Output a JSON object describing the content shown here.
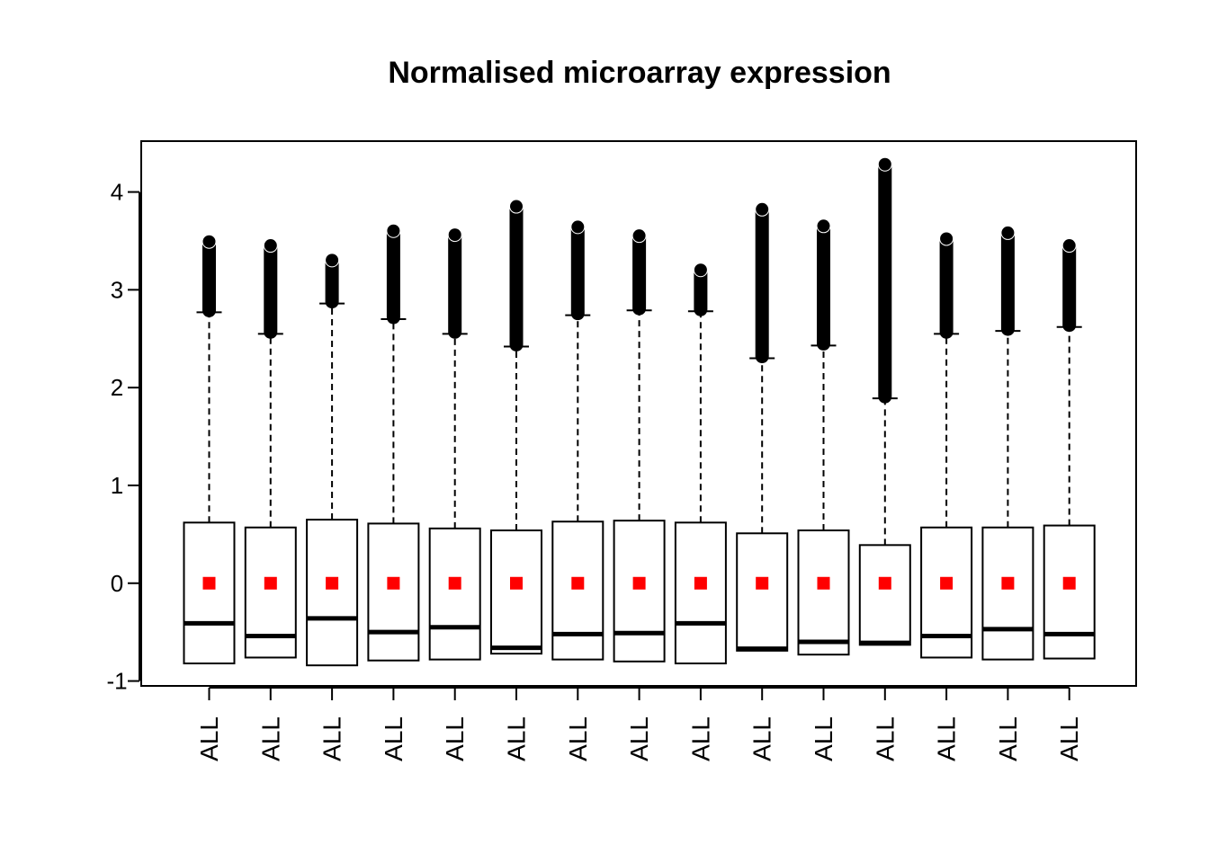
{
  "chart_data": {
    "type": "boxplot",
    "title": "Normalised microarray expression",
    "xlabel": "",
    "ylabel": "",
    "ylim": [
      -1.05,
      4.52
    ],
    "yticks": [
      -1,
      0,
      1,
      2,
      3,
      4
    ],
    "categories": [
      "ALL",
      "ALL",
      "ALL",
      "ALL",
      "ALL",
      "ALL",
      "ALL",
      "ALL",
      "ALL",
      "ALL",
      "ALL",
      "ALL",
      "ALL",
      "ALL",
      "ALL"
    ],
    "boxes": [
      {
        "min": -0.82,
        "q1": -0.82,
        "median": -0.41,
        "q3": 0.62,
        "whisker_high": 2.77,
        "outlier_max": 3.53
      },
      {
        "min": -0.76,
        "q1": -0.76,
        "median": -0.54,
        "q3": 0.57,
        "whisker_high": 2.55,
        "outlier_max": 3.49
      },
      {
        "min": -0.84,
        "q1": -0.84,
        "median": -0.36,
        "q3": 0.65,
        "whisker_high": 2.86,
        "outlier_max": 3.34
      },
      {
        "min": -0.79,
        "q1": -0.79,
        "median": -0.5,
        "q3": 0.61,
        "whisker_high": 2.7,
        "outlier_max": 3.64
      },
      {
        "min": -0.78,
        "q1": -0.78,
        "median": -0.45,
        "q3": 0.56,
        "whisker_high": 2.55,
        "outlier_max": 3.6
      },
      {
        "min": -0.72,
        "q1": -0.72,
        "median": -0.66,
        "q3": 0.54,
        "whisker_high": 2.42,
        "outlier_max": 3.89
      },
      {
        "min": -0.78,
        "q1": -0.78,
        "median": -0.52,
        "q3": 0.63,
        "whisker_high": 2.74,
        "outlier_max": 3.68
      },
      {
        "min": -0.8,
        "q1": -0.8,
        "median": -0.51,
        "q3": 0.64,
        "whisker_high": 2.79,
        "outlier_max": 3.59
      },
      {
        "min": -0.82,
        "q1": -0.82,
        "median": -0.41,
        "q3": 0.62,
        "whisker_high": 2.78,
        "outlier_max": 3.24
      },
      {
        "min": -0.69,
        "q1": -0.69,
        "median": -0.67,
        "q3": 0.51,
        "whisker_high": 2.3,
        "outlier_max": 3.86
      },
      {
        "min": -0.73,
        "q1": -0.73,
        "median": -0.6,
        "q3": 0.54,
        "whisker_high": 2.43,
        "outlier_max": 3.69
      },
      {
        "min": -0.63,
        "q1": -0.63,
        "median": -0.61,
        "q3": 0.39,
        "whisker_high": 1.89,
        "outlier_max": 4.32
      },
      {
        "min": -0.76,
        "q1": -0.76,
        "median": -0.54,
        "q3": 0.57,
        "whisker_high": 2.55,
        "outlier_max": 3.56
      },
      {
        "min": -0.78,
        "q1": -0.78,
        "median": -0.47,
        "q3": 0.57,
        "whisker_high": 2.58,
        "outlier_max": 3.62
      },
      {
        "min": -0.77,
        "q1": -0.77,
        "median": -0.52,
        "q3": 0.59,
        "whisker_high": 2.62,
        "outlier_max": 3.49
      }
    ],
    "mean_markers": [
      0,
      0,
      0,
      0,
      0,
      0,
      0,
      0,
      0,
      0,
      0,
      0,
      0,
      0,
      0
    ],
    "colors": {
      "mean_marker": "#ff0000",
      "stroke": "#000000",
      "background": "#ffffff"
    },
    "grid": false,
    "legend": "none"
  }
}
